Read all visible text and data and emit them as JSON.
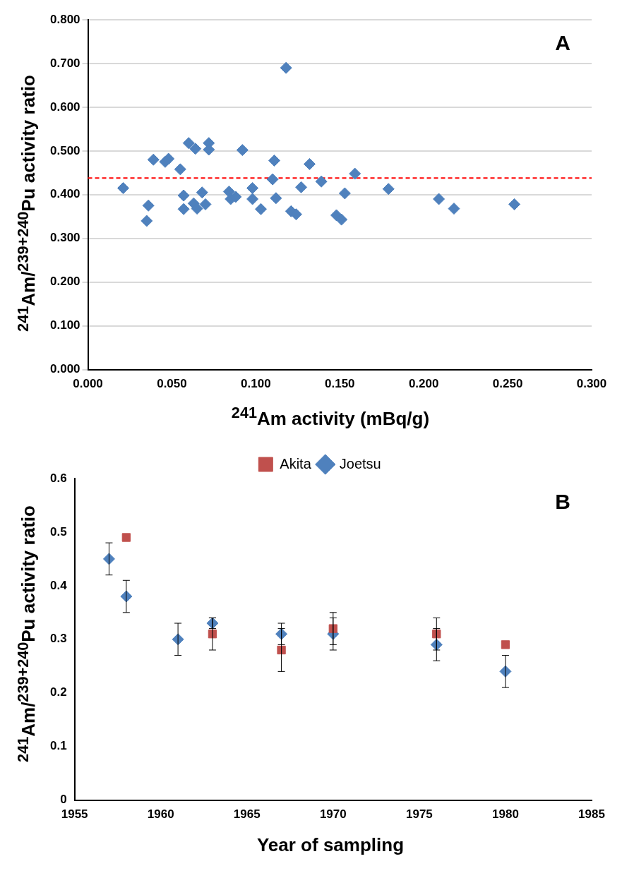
{
  "chart_data": [
    {
      "type": "scatter",
      "xlabel": "$^{241}$Am activity (mBq/g)",
      "ylabel": "$^{241}$Am/$^{239+240}$Pu activity ratio",
      "annotations": [
        "A"
      ],
      "x": [
        0.021,
        0.035,
        0.036,
        0.039,
        0.046,
        0.048,
        0.055,
        0.057,
        0.057,
        0.06,
        0.063,
        0.064,
        0.065,
        0.068,
        0.07,
        0.072,
        0.072,
        0.084,
        0.085,
        0.088,
        0.092,
        0.098,
        0.098,
        0.103,
        0.11,
        0.111,
        0.112,
        0.118,
        0.121,
        0.124,
        0.127,
        0.132,
        0.139,
        0.148,
        0.151,
        0.153,
        0.159,
        0.179,
        0.209,
        0.218,
        0.254
      ],
      "values": [
        0.415,
        0.34,
        0.375,
        0.48,
        0.475,
        0.482,
        0.458,
        0.398,
        0.367,
        0.518,
        0.38,
        0.505,
        0.368,
        0.405,
        0.378,
        0.518,
        0.503,
        0.407,
        0.39,
        0.395,
        0.502,
        0.415,
        0.39,
        0.367,
        0.435,
        0.478,
        0.392,
        0.69,
        0.362,
        0.355,
        0.417,
        0.47,
        0.43,
        0.353,
        0.343,
        0.403,
        0.448,
        0.413,
        0.39,
        0.368,
        0.378
      ],
      "color": "#4f81bd",
      "marker": "diamond",
      "grid": "y",
      "xlim": [
        0,
        0.3
      ],
      "xticks": [
        {
          "value": 0,
          "label": "0.000"
        },
        {
          "value": 0.05,
          "label": "0.050"
        },
        {
          "value": 0.1,
          "label": "0.100"
        },
        {
          "value": 0.15,
          "label": "0.150"
        },
        {
          "value": 0.2,
          "label": "0.200"
        },
        {
          "value": 0.25,
          "label": "0.250"
        },
        {
          "value": 0.3,
          "label": "0.300"
        }
      ],
      "ylim": [
        0,
        0.8
      ],
      "yticks": [
        {
          "value": 0,
          "label": "0.000"
        },
        {
          "value": 0.1,
          "label": "0.100"
        },
        {
          "value": 0.2,
          "label": "0.200"
        },
        {
          "value": 0.3,
          "label": "0.300"
        },
        {
          "value": 0.4,
          "label": "0.400"
        },
        {
          "value": 0.5,
          "label": "0.500"
        },
        {
          "value": 0.6,
          "label": "0.600"
        },
        {
          "value": 0.7,
          "label": "0.700"
        },
        {
          "value": 0.8,
          "label": "0.800"
        }
      ],
      "ref_lines": [
        {
          "axis": "y",
          "value": 0.438,
          "color": "#ff0000",
          "line_style": "dashed"
        }
      ]
    },
    {
      "type": "scatter",
      "xlabel": "Year of sampling",
      "ylabel": "$^{241}$Am/$^{239+240}$Pu activity ratio",
      "annotations": [
        "B"
      ],
      "legend": "top",
      "series": [
        {
          "name": "Akita",
          "color": "#c0504d",
          "marker": "square",
          "x": [
            1958,
            1963,
            1967,
            1970,
            1976,
            1980
          ],
          "values": [
            0.49,
            0.31,
            0.28,
            0.32,
            0.31,
            0.29
          ],
          "errors": [
            null,
            0.03,
            0.04,
            0.03,
            0.03,
            null
          ]
        },
        {
          "name": "Joetsu",
          "color": "#4f81bd",
          "marker": "diamond",
          "x": [
            1957,
            1958,
            1961,
            1963,
            1967,
            1970,
            1976,
            1980
          ],
          "values": [
            0.45,
            0.38,
            0.3,
            0.33,
            0.31,
            0.31,
            0.29,
            0.24
          ],
          "errors": [
            0.03,
            0.03,
            0.03,
            0.01,
            0.02,
            0.03,
            0.03,
            0.03
          ]
        }
      ],
      "xlim": [
        1955,
        1985
      ],
      "xticks": [
        1955,
        1960,
        1965,
        1970,
        1975,
        1980,
        1985
      ],
      "ylim": [
        0,
        0.6
      ],
      "yticks": [
        0,
        0.1,
        0.2,
        0.3,
        0.4,
        0.5,
        0.6
      ]
    }
  ]
}
